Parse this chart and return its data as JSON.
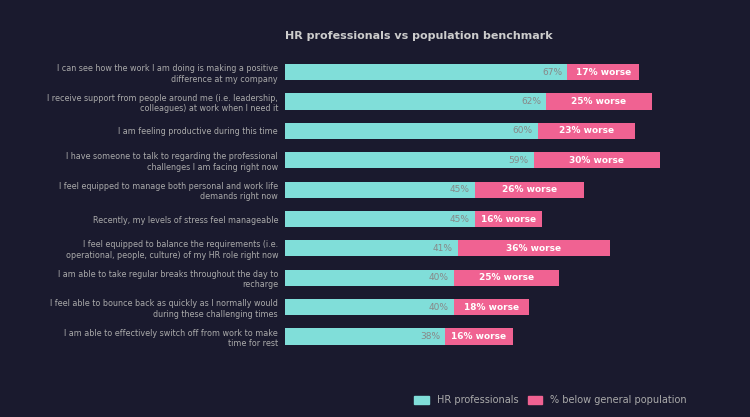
{
  "title": "HR professionals vs population benchmark",
  "categories": [
    "I can see how the work I am doing is making a positive\ndifference at my company",
    "I receive support from people around me (i.e. leadership,\ncolleagues) at work when I need it",
    "I am feeling productive during this time",
    "I have someone to talk to regarding the professional\nchallenges I am facing right now",
    "I feel equipped to manage both personal and work life\ndemands right now",
    "Recently, my levels of stress feel manageable",
    "I feel equipped to balance the requirements (i.e.\noperational, people, culture) of my HR role right now",
    "I am able to take regular breaks throughout the day to\nrecharge",
    "I feel able to bounce back as quickly as I normally would\nduring these challenging times",
    "I am able to effectively switch off from work to make\ntime for rest"
  ],
  "hr_values": [
    67,
    62,
    60,
    59,
    45,
    45,
    41,
    40,
    40,
    38
  ],
  "worse_values": [
    17,
    25,
    23,
    30,
    26,
    16,
    36,
    25,
    18,
    16
  ],
  "worse_labels": [
    "17% worse",
    "25% worse",
    "23% worse",
    "30% worse",
    "26% worse",
    "16% worse",
    "36% worse",
    "25% worse",
    "18% worse",
    "16% worse"
  ],
  "hr_color": "#80ded9",
  "worse_color": "#f06292",
  "hr_label": "HR professionals",
  "worse_label": "% below general population",
  "background_color": "#1a1a2e",
  "plot_bg_color": "#1a1a2e",
  "title_color": "#cccccc",
  "label_color": "#aaaaaa",
  "hr_pct_color": "#888888",
  "title_fontsize": 8,
  "label_fontsize": 5.8,
  "bar_fontsize": 6.5,
  "legend_fontsize": 7,
  "xlim": [
    0,
    105
  ],
  "bar_height": 0.55
}
